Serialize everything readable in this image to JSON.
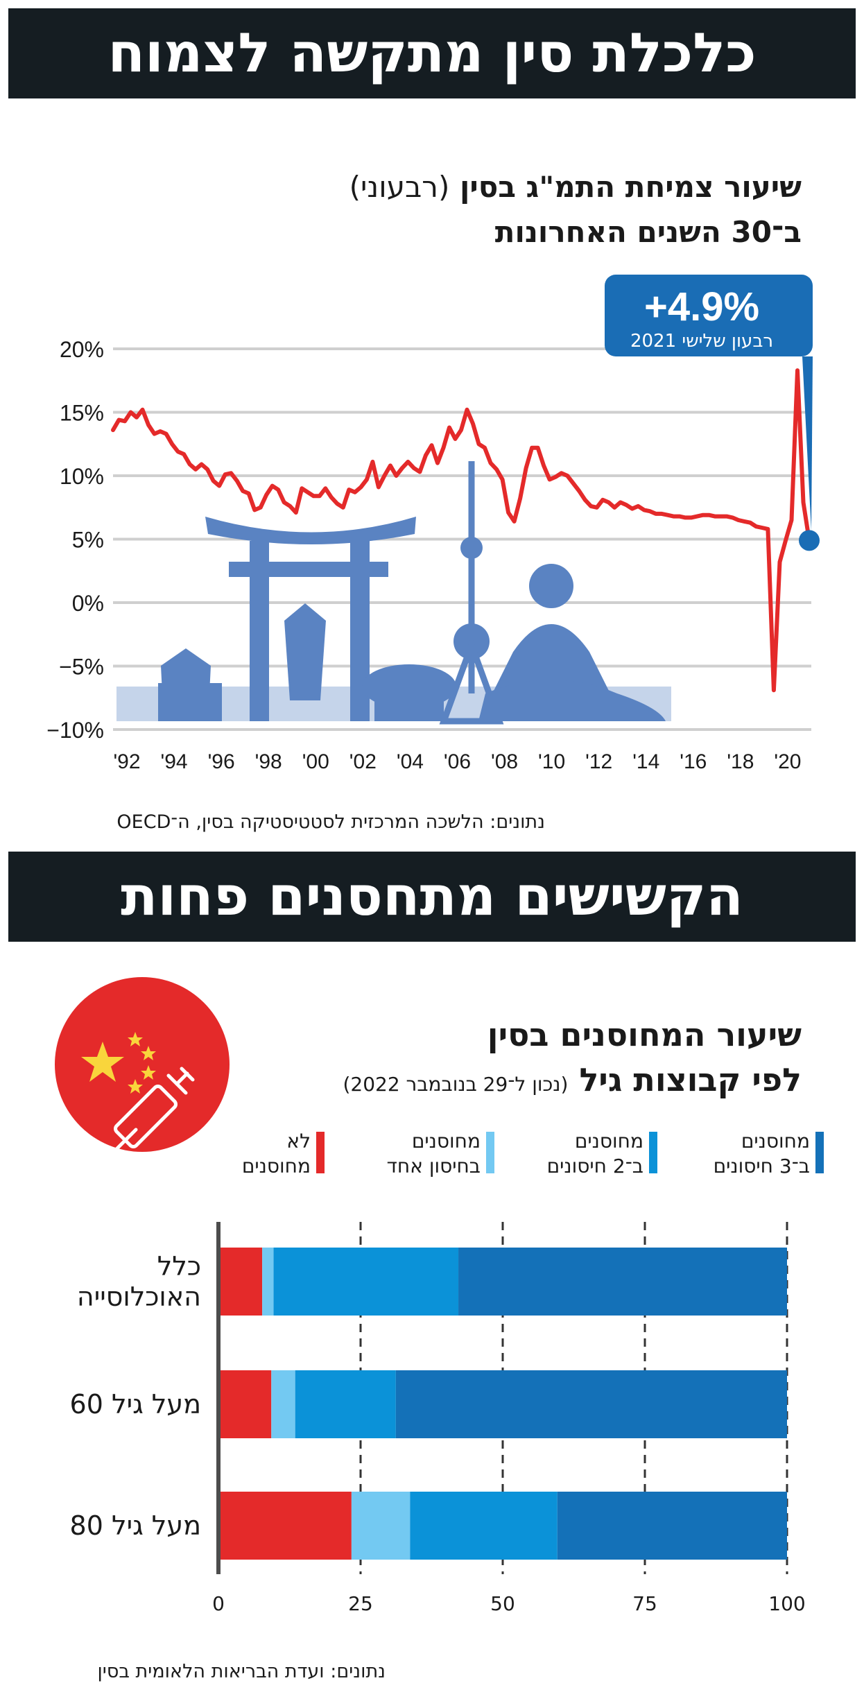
{
  "header": {
    "banner_top": "כלכלת סין מתקשה לצמוח",
    "banner_bottom": "הקשישים מתחסנים פחות"
  },
  "colors": {
    "banner_bg": "#151d22",
    "line_red": "#e42a2a",
    "callout_blue": "#1a6db5",
    "skyline_blue": "#5a83c2",
    "not_vaccinated": "#e42a2a",
    "one_dose": "#73c9f2",
    "two_doses": "#0b92d8",
    "three_doses": "#1471b8",
    "flag_red": "#e42a2a",
    "flag_star": "#f9d53c"
  },
  "charts": {
    "gdp": {
      "title_main": "שיעור צמיחת התמ\"ג בסין",
      "title_paren": "(רבעוני)",
      "title_line2": "ב־30 השנים האחרונות",
      "callout_value": "+4.9%",
      "callout_label": "רבעון שלישי 2021",
      "source": "נתונים: הלשכה המרכזית לסטטיסטיקה בסין, ה־OECD",
      "skyline_icon": "china-skyline-icon"
    },
    "vaccination": {
      "title_line1": "שיעור המחוסנים בסין",
      "title_line2": "לפי קבוצות גיל",
      "title_paren": "(נכון ל־29 בנובמבר 2022)",
      "source": "נתונים: ועדת הבריאות הלאומית בסין",
      "badge_icon": "china-flag-syringe-icon",
      "legend": [
        {
          "line1": "מחוסנים",
          "line2": "ב־3 חיסונים",
          "color": "#1471b8"
        },
        {
          "line1": "מחוסנים",
          "line2": "ב־2 חיסונים",
          "color": "#0b92d8"
        },
        {
          "line1": "מחוסנים",
          "line2": "בחיסון אחד",
          "color": "#73c9f2"
        },
        {
          "line1": "לא",
          "line2": "מחוסנים",
          "color": "#e42a2a"
        }
      ],
      "categories": [
        {
          "line1": "כלל",
          "line2": "האוכלוסייה"
        },
        {
          "line1": "מעל גיל 60",
          "line2": ""
        },
        {
          "line1": "מעל גיל 80",
          "line2": ""
        }
      ]
    }
  },
  "chart_data": [
    {
      "type": "line",
      "title": "שיעור צמיחת התמ\"ג בסין (רבעוני) ב־30 השנים האחרונות",
      "ylabel": "",
      "xlabel": "",
      "y_ticks": [
        20,
        15,
        10,
        5,
        0,
        -5,
        -10
      ],
      "y_tick_labels": [
        "20%",
        "15%",
        "10%",
        "5%",
        "0%",
        "−5%",
        "−10%"
      ],
      "x_ticks": [
        1992,
        1994,
        1996,
        1998,
        2000,
        2002,
        2004,
        2006,
        2008,
        2010,
        2012,
        2014,
        2016,
        2018,
        2020
      ],
      "x_tick_labels": [
        "'92",
        "'94",
        "'96",
        "'98",
        "'00",
        "'02",
        "'04",
        "'06",
        "'08",
        "'10",
        "'12",
        "'14",
        "'16",
        "'18",
        "'20"
      ],
      "ylim": [
        -10,
        20
      ],
      "grid": true,
      "series": [
        {
          "color": "#e42a2a",
          "x": [
            1992.0,
            1992.25,
            1992.5,
            1992.75,
            1993.0,
            1993.25,
            1993.5,
            1993.75,
            1994.0,
            1994.25,
            1994.5,
            1994.75,
            1995.0,
            1995.25,
            1995.5,
            1995.75,
            1996.0,
            1996.25,
            1996.5,
            1996.75,
            1997.0,
            1997.25,
            1997.5,
            1997.75,
            1998.0,
            1998.25,
            1998.5,
            1998.75,
            1999.0,
            1999.25,
            1999.5,
            1999.75,
            2000.0,
            2000.25,
            2000.5,
            2000.75,
            2001.0,
            2001.25,
            2001.5,
            2001.75,
            2002.0,
            2002.25,
            2002.5,
            2002.75,
            2003.0,
            2003.25,
            2003.5,
            2003.75,
            2004.0,
            2004.25,
            2004.5,
            2004.75,
            2005.0,
            2005.25,
            2005.5,
            2005.75,
            2006.0,
            2006.25,
            2006.5,
            2006.75,
            2007.0,
            2007.25,
            2007.5,
            2007.75,
            2008.0,
            2008.25,
            2008.5,
            2008.75,
            2009.0,
            2009.25,
            2009.5,
            2009.75,
            2010.0,
            2010.25,
            2010.5,
            2010.75,
            2011.0,
            2011.25,
            2011.5,
            2011.75,
            2012.0,
            2012.25,
            2012.5,
            2012.75,
            2013.0,
            2013.25,
            2013.5,
            2013.75,
            2014.0,
            2014.25,
            2014.5,
            2014.75,
            2015.0,
            2015.25,
            2015.5,
            2015.75,
            2016.0,
            2016.25,
            2016.5,
            2016.75,
            2017.0,
            2017.25,
            2017.5,
            2017.75,
            2018.0,
            2018.25,
            2018.5,
            2018.75,
            2019.0,
            2019.25,
            2019.5,
            2019.75,
            2020.0,
            2020.25,
            2020.5,
            2020.75,
            2021.0,
            2021.25,
            2021.5
          ],
          "y": [
            13.6,
            14.4,
            14.3,
            15.0,
            14.6,
            15.2,
            14.0,
            13.3,
            13.5,
            13.3,
            12.5,
            11.9,
            11.7,
            10.9,
            10.5,
            10.9,
            10.5,
            9.6,
            9.2,
            10.1,
            10.2,
            9.6,
            8.8,
            8.6,
            7.3,
            7.5,
            8.5,
            9.2,
            8.9,
            7.9,
            7.6,
            7.1,
            9.0,
            8.7,
            8.4,
            8.4,
            9.0,
            8.3,
            7.8,
            7.5,
            8.9,
            8.7,
            9.1,
            9.7,
            11.1,
            9.1,
            10.0,
            10.8,
            10.0,
            10.6,
            11.1,
            10.6,
            10.3,
            11.6,
            12.4,
            11.0,
            12.2,
            13.8,
            12.9,
            13.6,
            15.2,
            14.1,
            12.5,
            12.2,
            11.0,
            10.5,
            9.7,
            7.1,
            6.4,
            8.2,
            10.6,
            12.2,
            12.2,
            10.8,
            9.7,
            9.9,
            10.2,
            10.0,
            9.4,
            8.8,
            8.1,
            7.6,
            7.5,
            8.1,
            7.9,
            7.5,
            7.9,
            7.7,
            7.4,
            7.6,
            7.3,
            7.2,
            7.0,
            7.0,
            6.9,
            6.8,
            6.8,
            6.7,
            6.7,
            6.8,
            6.9,
            6.9,
            6.8,
            6.8,
            6.8,
            6.7,
            6.5,
            6.4,
            6.3,
            6.0,
            5.9,
            5.8,
            -6.9,
            3.2,
            4.9,
            6.5,
            18.3,
            7.9,
            4.9
          ]
        }
      ],
      "annotations": [
        {
          "x": 2021.5,
          "y": 4.9,
          "text": "+4.9%",
          "subtext": "רבעון שלישי 2021"
        }
      ]
    },
    {
      "type": "bar",
      "orientation": "horizontal",
      "stacked": true,
      "title": "שיעור המחוסנים בסין לפי קבוצות גיל (נכון ל־29 בנובמבר 2022)",
      "categories": [
        "כלל האוכלוסייה",
        "מעל גיל 60",
        "מעל גיל 80"
      ],
      "xlim": [
        0,
        100
      ],
      "x_ticks": [
        0,
        25,
        50,
        75,
        100
      ],
      "grid": "dashed vertical lines at 25, 50, 75, 100",
      "series": [
        {
          "name": "לא מחוסנים",
          "color": "#e42a2a",
          "values": [
            7.7,
            9.3,
            23.4
          ]
        },
        {
          "name": "מחוסנים בחיסון אחד",
          "color": "#73c9f2",
          "values": [
            2.0,
            4.2,
            10.3
          ]
        },
        {
          "name": "מחוסנים ב־2 חיסונים",
          "color": "#0b92d8",
          "values": [
            32.5,
            17.7,
            25.9
          ]
        },
        {
          "name": "מחוסנים ב־3 חיסונים",
          "color": "#1471b8",
          "values": [
            57.8,
            68.8,
            40.4
          ]
        }
      ]
    }
  ]
}
